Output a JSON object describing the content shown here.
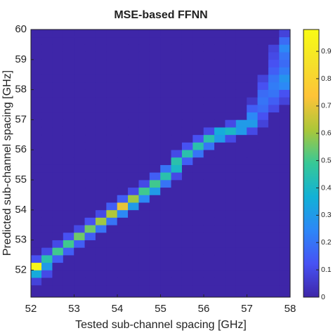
{
  "chart_data": {
    "type": "heatmap",
    "title": "MSE-based FFNN",
    "xlabel": "Tested sub-channel spacing [GHz]",
    "ylabel": "Predicted sub-channel spacing [GHz]",
    "xlim": [
      52,
      58
    ],
    "ylim": [
      51.1,
      60
    ],
    "xticks": [
      52,
      53,
      54,
      55,
      56,
      57,
      58
    ],
    "yticks": [
      52,
      53,
      54,
      55,
      56,
      57,
      58,
      59,
      60
    ],
    "x_edges": [
      52,
      52.25,
      52.5,
      52.75,
      53,
      53.25,
      53.5,
      53.75,
      54,
      54.25,
      54.5,
      54.75,
      55,
      55.25,
      55.5,
      55.75,
      56,
      56.25,
      56.5,
      56.75,
      57,
      57.25,
      57.5,
      57.75,
      58
    ],
    "y_edges": [
      51,
      51.25,
      51.5,
      51.75,
      52,
      52.25,
      52.5,
      52.75,
      53,
      53.25,
      53.5,
      53.75,
      54,
      54.25,
      54.5,
      54.75,
      55,
      55.25,
      55.5,
      55.75,
      56,
      56.25,
      56.5,
      56.75,
      57,
      57.25,
      57.5,
      57.75,
      58,
      58.25,
      58.5,
      58.75,
      59,
      59.25,
      59.5,
      59.75,
      60
    ],
    "z": [
      [
        0,
        0,
        0,
        0,
        0,
        0,
        0,
        0,
        0,
        0,
        0,
        0,
        0,
        0,
        0,
        0,
        0,
        0,
        0,
        0,
        0,
        0,
        0,
        0
      ],
      [
        0,
        0,
        0,
        0,
        0,
        0,
        0,
        0,
        0,
        0,
        0,
        0,
        0,
        0,
        0,
        0,
        0,
        0,
        0,
        0,
        0,
        0,
        0,
        0
      ],
      [
        0.08,
        0,
        0,
        0,
        0,
        0,
        0,
        0,
        0,
        0,
        0,
        0,
        0,
        0,
        0,
        0,
        0,
        0,
        0,
        0,
        0,
        0,
        0,
        0
      ],
      [
        0.35,
        0.1,
        0,
        0,
        0,
        0,
        0,
        0,
        0,
        0,
        0,
        0,
        0,
        0,
        0,
        0,
        0,
        0,
        0,
        0,
        0,
        0,
        0,
        0
      ],
      [
        0.95,
        0.3,
        0,
        0,
        0,
        0,
        0,
        0,
        0,
        0,
        0,
        0,
        0,
        0,
        0,
        0,
        0,
        0,
        0,
        0,
        0,
        0,
        0,
        0
      ],
      [
        0.12,
        0.45,
        0.15,
        0,
        0,
        0,
        0,
        0,
        0,
        0,
        0,
        0,
        0,
        0,
        0,
        0,
        0,
        0,
        0,
        0,
        0,
        0,
        0,
        0
      ],
      [
        0,
        0.1,
        0.5,
        0.15,
        0,
        0,
        0,
        0,
        0,
        0,
        0,
        0,
        0,
        0,
        0,
        0,
        0,
        0,
        0,
        0,
        0,
        0,
        0,
        0
      ],
      [
        0,
        0,
        0.1,
        0.5,
        0.15,
        0,
        0,
        0,
        0,
        0,
        0,
        0,
        0,
        0,
        0,
        0,
        0,
        0,
        0,
        0,
        0,
        0,
        0,
        0
      ],
      [
        0,
        0,
        0,
        0.12,
        0.55,
        0.15,
        0,
        0,
        0,
        0,
        0,
        0,
        0,
        0,
        0,
        0,
        0,
        0,
        0,
        0,
        0,
        0,
        0,
        0
      ],
      [
        0,
        0,
        0,
        0,
        0.1,
        0.55,
        0.2,
        0,
        0,
        0,
        0,
        0,
        0,
        0,
        0,
        0,
        0,
        0,
        0,
        0,
        0,
        0,
        0,
        0
      ],
      [
        0,
        0,
        0,
        0,
        0,
        0.12,
        0.6,
        0.2,
        0,
        0,
        0,
        0,
        0,
        0,
        0,
        0,
        0,
        0,
        0,
        0,
        0,
        0,
        0,
        0
      ],
      [
        0,
        0,
        0,
        0,
        0,
        0,
        0.1,
        0.62,
        0.25,
        0,
        0,
        0,
        0,
        0,
        0,
        0,
        0,
        0,
        0,
        0,
        0,
        0,
        0,
        0
      ],
      [
        0,
        0,
        0,
        0,
        0,
        0,
        0,
        0.15,
        0.7,
        0.3,
        0,
        0,
        0,
        0,
        0,
        0,
        0,
        0,
        0,
        0,
        0,
        0,
        0,
        0
      ],
      [
        0,
        0,
        0,
        0,
        0,
        0,
        0,
        0,
        0.15,
        0.6,
        0.25,
        0,
        0,
        0,
        0,
        0,
        0,
        0,
        0,
        0,
        0,
        0,
        0,
        0
      ],
      [
        0,
        0,
        0,
        0,
        0,
        0,
        0,
        0,
        0,
        0.1,
        0.5,
        0.3,
        0,
        0,
        0,
        0,
        0,
        0,
        0,
        0,
        0,
        0,
        0,
        0
      ],
      [
        0,
        0,
        0,
        0,
        0,
        0,
        0,
        0,
        0,
        0,
        0.1,
        0.5,
        0.2,
        0,
        0,
        0,
        0,
        0,
        0,
        0,
        0,
        0,
        0,
        0
      ],
      [
        0,
        0,
        0,
        0,
        0,
        0,
        0,
        0,
        0,
        0,
        0,
        0.15,
        0.45,
        0.1,
        0,
        0,
        0,
        0,
        0,
        0,
        0,
        0,
        0,
        0
      ],
      [
        0,
        0,
        0,
        0,
        0,
        0,
        0,
        0,
        0,
        0,
        0,
        0,
        0.2,
        0.4,
        0,
        0,
        0,
        0,
        0,
        0,
        0,
        0,
        0,
        0
      ],
      [
        0,
        0,
        0,
        0,
        0,
        0,
        0,
        0,
        0,
        0,
        0,
        0,
        0,
        0.45,
        0.15,
        0,
        0,
        0,
        0,
        0,
        0,
        0,
        0,
        0
      ],
      [
        0,
        0,
        0,
        0,
        0,
        0,
        0,
        0,
        0,
        0,
        0,
        0,
        0,
        0.1,
        0.45,
        0.2,
        0,
        0,
        0,
        0,
        0,
        0,
        0,
        0
      ],
      [
        0,
        0,
        0,
        0,
        0,
        0,
        0,
        0,
        0,
        0,
        0,
        0,
        0,
        0,
        0.12,
        0.45,
        0.2,
        0,
        0,
        0,
        0,
        0,
        0,
        0
      ],
      [
        0,
        0,
        0,
        0,
        0,
        0,
        0,
        0,
        0,
        0,
        0,
        0,
        0,
        0,
        0,
        0.12,
        0.45,
        0.3,
        0.1,
        0,
        0,
        0,
        0,
        0
      ],
      [
        0,
        0,
        0,
        0,
        0,
        0,
        0,
        0,
        0,
        0,
        0,
        0,
        0,
        0,
        0,
        0,
        0.1,
        0.35,
        0.4,
        0.3,
        0.1,
        0,
        0,
        0
      ],
      [
        0,
        0,
        0,
        0,
        0,
        0,
        0,
        0,
        0,
        0,
        0,
        0,
        0,
        0,
        0,
        0,
        0,
        0,
        0.1,
        0.3,
        0.3,
        0.08,
        0,
        0
      ],
      [
        0,
        0,
        0,
        0,
        0,
        0,
        0,
        0,
        0,
        0,
        0,
        0,
        0,
        0,
        0,
        0,
        0,
        0,
        0,
        0,
        0.25,
        0.12,
        0,
        0
      ],
      [
        0,
        0,
        0,
        0,
        0,
        0,
        0,
        0,
        0,
        0,
        0,
        0,
        0,
        0,
        0,
        0,
        0,
        0,
        0,
        0,
        0.15,
        0.18,
        0.1,
        0
      ],
      [
        0,
        0,
        0,
        0,
        0,
        0,
        0,
        0,
        0,
        0,
        0,
        0,
        0,
        0,
        0,
        0,
        0,
        0,
        0,
        0,
        0.05,
        0.2,
        0.15,
        0.08
      ],
      [
        0,
        0,
        0,
        0,
        0,
        0,
        0,
        0,
        0,
        0,
        0,
        0,
        0,
        0,
        0,
        0,
        0,
        0,
        0,
        0,
        0,
        0.18,
        0.2,
        0.12
      ],
      [
        0,
        0,
        0,
        0,
        0,
        0,
        0,
        0,
        0,
        0,
        0,
        0,
        0,
        0,
        0,
        0,
        0,
        0,
        0,
        0,
        0,
        0.12,
        0.22,
        0.25
      ],
      [
        0,
        0,
        0,
        0,
        0,
        0,
        0,
        0,
        0,
        0,
        0,
        0,
        0,
        0,
        0,
        0,
        0,
        0,
        0,
        0,
        0,
        0.08,
        0.2,
        0.28
      ],
      [
        0,
        0,
        0,
        0,
        0,
        0,
        0,
        0,
        0,
        0,
        0,
        0,
        0,
        0,
        0,
        0,
        0,
        0,
        0,
        0,
        0,
        0,
        0.15,
        0.22
      ],
      [
        0,
        0,
        0,
        0,
        0,
        0,
        0,
        0,
        0,
        0,
        0,
        0,
        0,
        0,
        0,
        0,
        0,
        0,
        0,
        0,
        0,
        0,
        0.12,
        0.18
      ],
      [
        0,
        0,
        0,
        0,
        0,
        0,
        0,
        0,
        0,
        0,
        0,
        0,
        0,
        0,
        0,
        0,
        0,
        0,
        0,
        0,
        0,
        0,
        0.1,
        0.2
      ],
      [
        0,
        0,
        0,
        0,
        0,
        0,
        0,
        0,
        0,
        0,
        0,
        0,
        0,
        0,
        0,
        0,
        0,
        0,
        0,
        0,
        0,
        0,
        0.08,
        0.25
      ],
      [
        0,
        0,
        0,
        0,
        0,
        0,
        0,
        0,
        0,
        0,
        0,
        0,
        0,
        0,
        0,
        0,
        0,
        0,
        0,
        0,
        0,
        0,
        0,
        0.18
      ],
      [
        0,
        0,
        0,
        0,
        0,
        0,
        0,
        0,
        0,
        0,
        0,
        0,
        0,
        0,
        0,
        0,
        0,
        0,
        0,
        0,
        0,
        0,
        0,
        0.08
      ]
    ],
    "clim": [
      0,
      0.98
    ],
    "cticks": [
      0,
      0.1,
      0.2,
      0.3,
      0.4,
      0.5,
      0.6,
      0.7,
      0.8,
      0.9
    ],
    "colormap": [
      "#3e26a8",
      "#4752f4",
      "#2d87f7",
      "#12b1d6",
      "#37c897",
      "#abc739",
      "#fec338",
      "#f5e12a",
      "#f9fb15"
    ]
  }
}
